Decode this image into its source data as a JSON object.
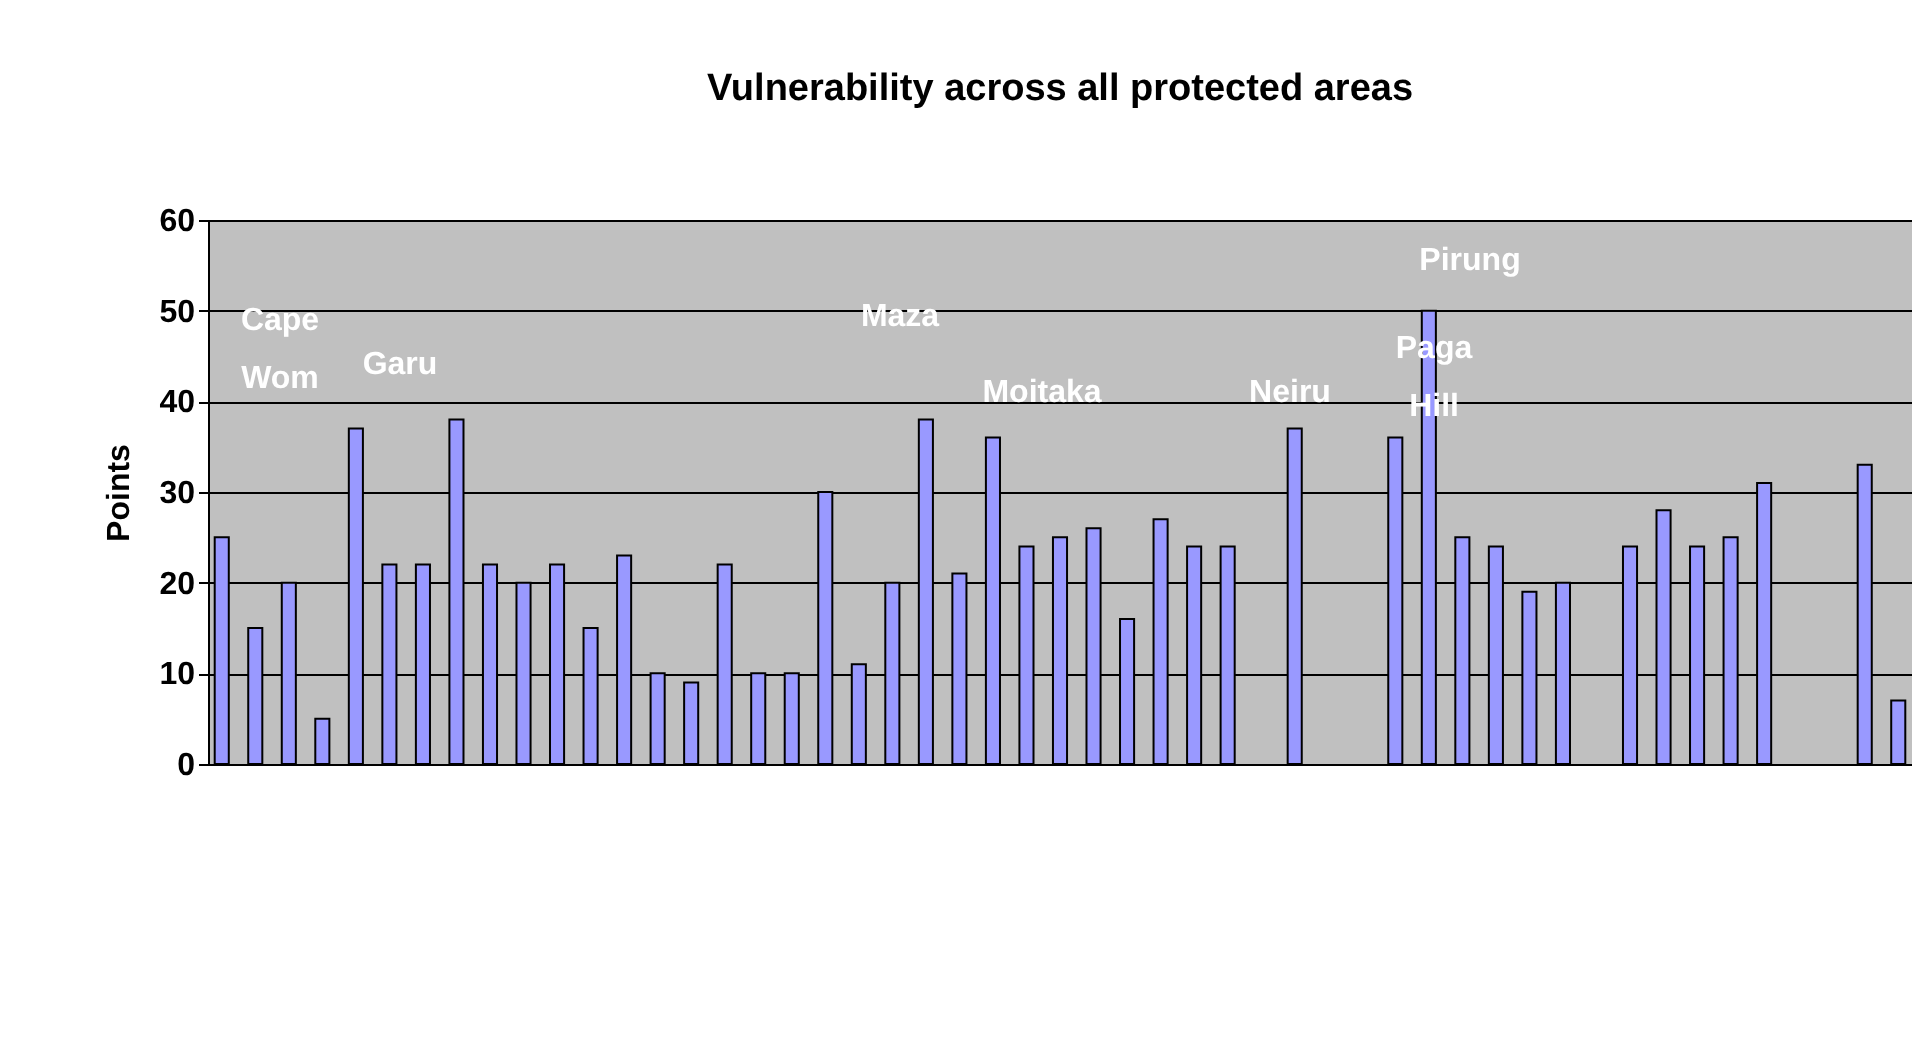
{
  "chart_data": {
    "type": "bar",
    "title": "Vulnerability across all protected areas",
    "ylabel": "Points",
    "categories": [
      null,
      null,
      null,
      null,
      null,
      null,
      null,
      null,
      null,
      null,
      null,
      null,
      null,
      null,
      null,
      null,
      null,
      null,
      null,
      null,
      null,
      null,
      null,
      null,
      null,
      null,
      null,
      null,
      null,
      null,
      null,
      null,
      null,
      null,
      null,
      null,
      null,
      null,
      null,
      null,
      null,
      null,
      null,
      null,
      null,
      null,
      null,
      null,
      null,
      null,
      null
    ],
    "values": [
      25,
      15,
      20,
      5,
      37,
      22,
      22,
      38,
      22,
      20,
      22,
      15,
      23,
      10,
      9,
      22,
      10,
      10,
      30,
      11,
      20,
      38,
      21,
      36,
      24,
      25,
      26,
      16,
      27,
      24,
      24,
      null,
      37,
      null,
      null,
      36,
      50,
      25,
      24,
      19,
      20,
      null,
      24,
      28,
      24,
      25,
      31,
      null,
      null,
      33,
      7
    ],
    "color": "#9999ff",
    "ylim": [
      0,
      60
    ],
    "yticks": [
      0,
      10,
      20,
      30,
      40,
      50,
      60
    ],
    "grid": "y",
    "tick_labels": "y",
    "annotations": [
      "Cape Wom",
      "Garu",
      "Maza",
      "Moitaka",
      "Neiru",
      "Paga Hill",
      "Pirung"
    ]
  }
}
